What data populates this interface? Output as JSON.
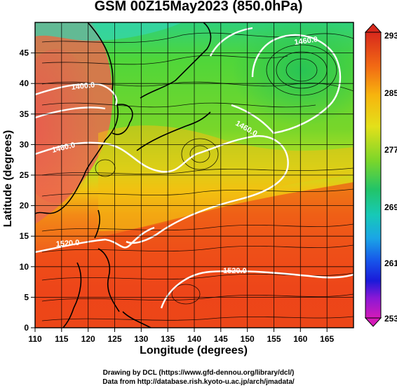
{
  "title": "GSM 00Z15May2023 (850.0hPa)",
  "axes": {
    "xlabel": "Longitude (degrees)",
    "ylabel": "Latitude  (degrees)",
    "x_ticks": [
      "110",
      "115",
      "120",
      "125",
      "130",
      "135",
      "140",
      "145",
      "150",
      "155",
      "160",
      "165"
    ],
    "y_ticks": [
      "0",
      "5",
      "10",
      "15",
      "20",
      "25",
      "30",
      "35",
      "40",
      "45"
    ],
    "x_range": [
      110,
      170
    ],
    "y_range": [
      0,
      50
    ]
  },
  "colorbar": {
    "labels": [
      "293",
      "285",
      "277",
      "269",
      "261",
      "253"
    ],
    "min": 253,
    "max": 293
  },
  "contours": [
    {
      "label": "1400.0"
    },
    {
      "label": "1460.0"
    },
    {
      "label": "1460.0"
    },
    {
      "label": "1520.0"
    },
    {
      "label": "1520.0"
    },
    {
      "label": "1460.0"
    }
  ],
  "credits": {
    "line1": "Drawing by DCL (https://www.gfd-dennou.org/library/dcl/)",
    "line2": "Data from http://database.rish.kyoto-u.ac.jp/arch/jmadata/"
  }
}
